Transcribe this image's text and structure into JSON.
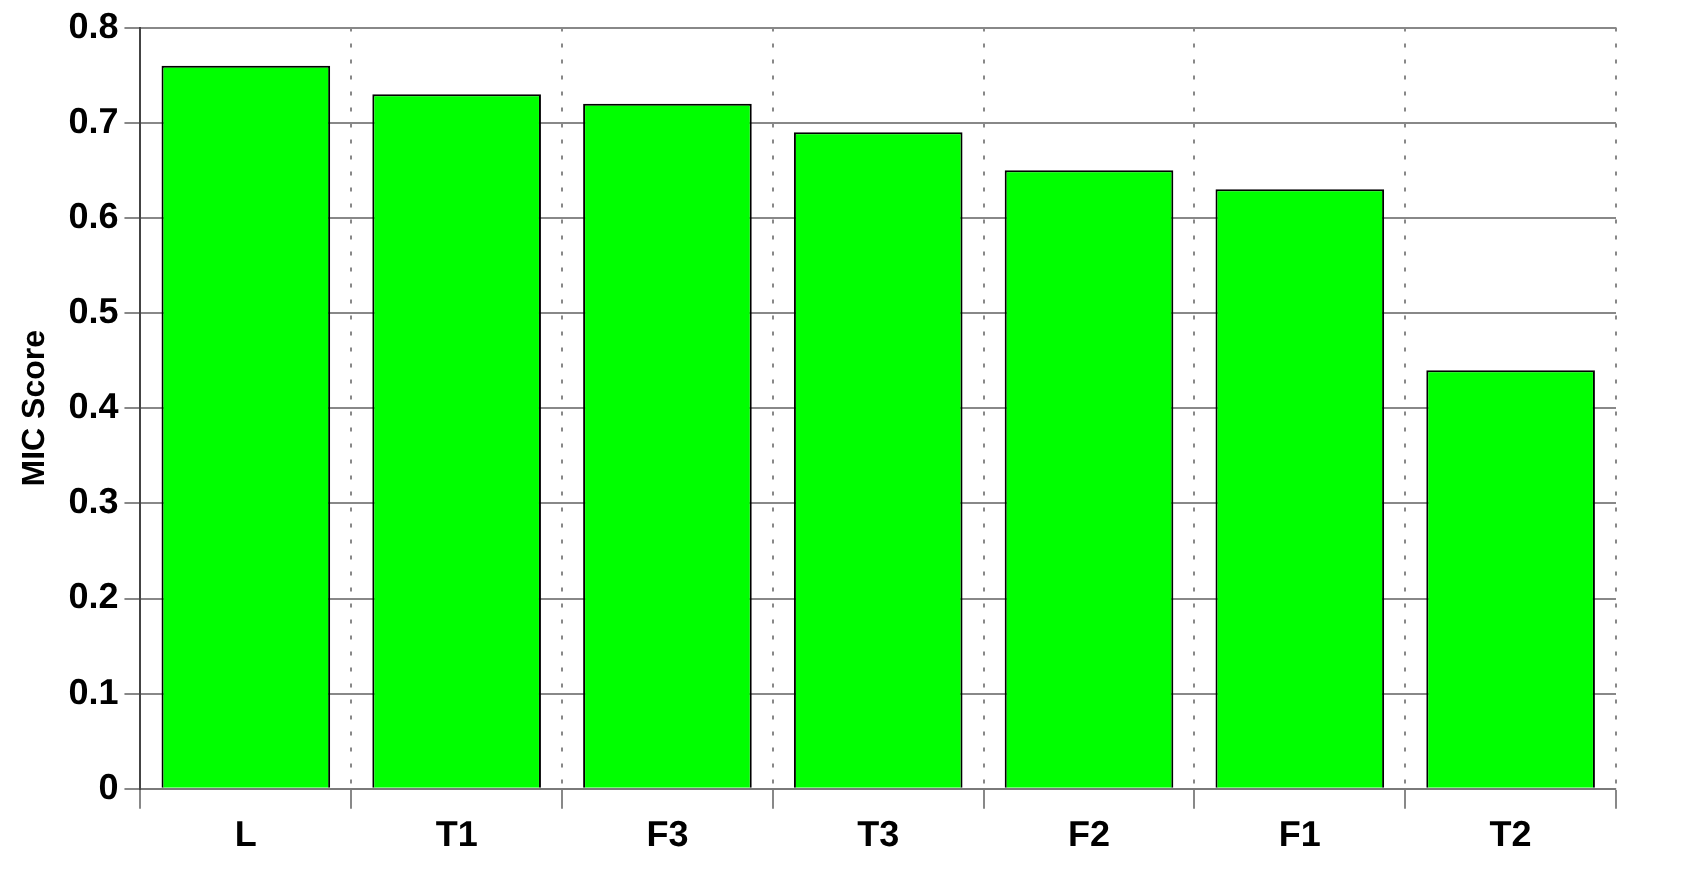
{
  "chart_data": {
    "type": "bar",
    "ylabel": "MIC Score",
    "categories": [
      "L",
      "T1",
      "F3",
      "T3",
      "F2",
      "F1",
      "T2"
    ],
    "values": [
      0.76,
      0.73,
      0.72,
      0.69,
      0.65,
      0.63,
      0.44
    ],
    "color": "#00ff00",
    "ylim": [
      0,
      0.8
    ],
    "yticks": [
      0,
      0.1,
      0.2,
      0.3,
      0.4,
      0.5,
      0.6,
      0.7,
      0.8
    ],
    "grid": true
  }
}
